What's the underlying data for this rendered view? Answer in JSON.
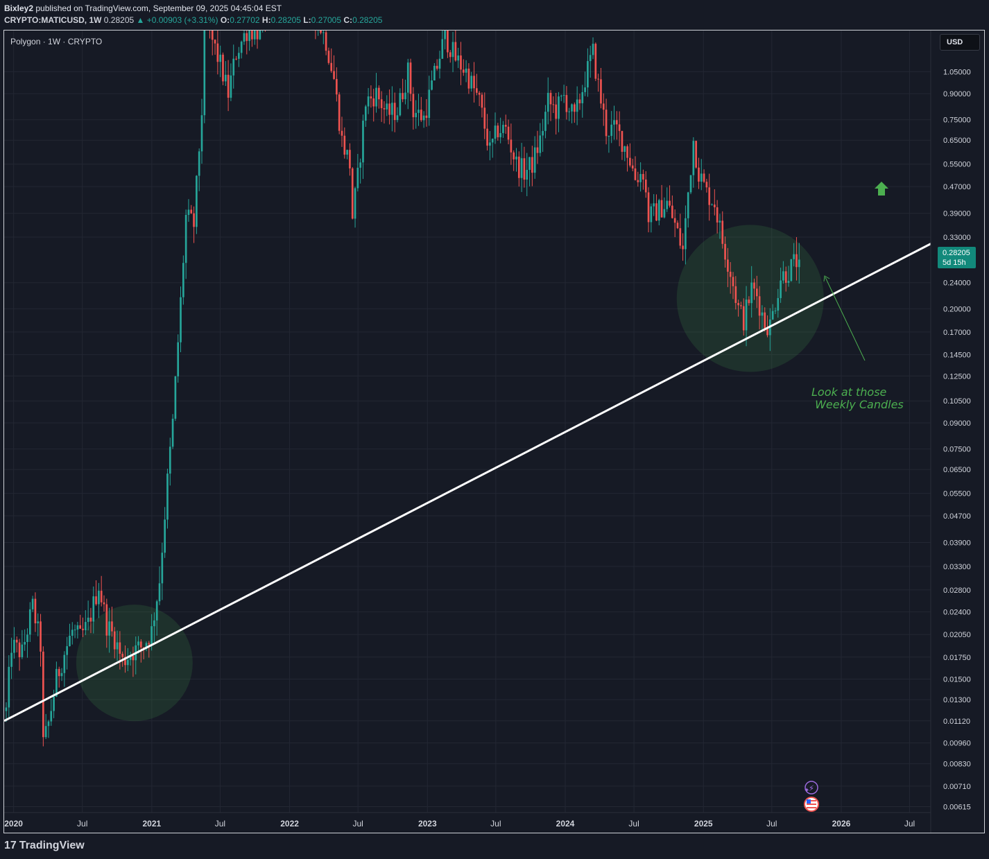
{
  "header": {
    "author": "Bixley2",
    "published_text": "published on TradingView.com, September 09, 2025 04:45:04 EST",
    "symbol": "CRYPTO:MATICUSD, 1W",
    "last": "0.28205",
    "change": "▲ +0.00903 (+3.31%)",
    "open_label": "O:",
    "open": "0.27702",
    "high_label": "H:",
    "high": "0.28205",
    "low_label": "L:",
    "low": "0.27005",
    "close_label": "C:",
    "close": "0.28205"
  },
  "legend": {
    "title": "Polygon · 1W · CRYPTO"
  },
  "currency_button": {
    "label": "USD"
  },
  "price_tag": {
    "price": "0.28205",
    "countdown": "5d 15h"
  },
  "annotation": {
    "text": "Look at those\n Weekly Candles"
  },
  "footer": {
    "brand": "TradingView",
    "logo_glyph": "17"
  },
  "colors": {
    "background": "#161a25",
    "up": "#26a69a",
    "down": "#ef5350",
    "trendline": "#ffffff",
    "highlight": "#4caf50"
  },
  "icons": [
    "arrow-up-icon",
    "flash-icon",
    "us-flag-icon",
    "tradingview-logo-icon"
  ],
  "chart_data": {
    "type": "candlestick",
    "title": "Polygon · 1W · CRYPTO",
    "scale": "log",
    "ylim": [
      0.0059,
      1.4
    ],
    "y_ticks": [
      "1.05000",
      "0.90000",
      "0.75000",
      "0.65000",
      "0.55000",
      "0.47000",
      "0.39000",
      "0.33000",
      "0.24000",
      "0.20000",
      "0.17000",
      "0.14500",
      "0.12500",
      "0.10500",
      "0.09000",
      "0.07500",
      "0.06500",
      "0.05500",
      "0.04700",
      "0.03900",
      "0.03300",
      "0.02800",
      "0.02400",
      "0.02050",
      "0.01750",
      "0.01500",
      "0.01300",
      "0.01120",
      "0.00960",
      "0.00830",
      "0.00710",
      "0.00615"
    ],
    "x_ticks": [
      "2020",
      "Jul",
      "2021",
      "Jul",
      "2022",
      "Jul",
      "2023",
      "Jul",
      "2024",
      "Jul",
      "2025",
      "Jul",
      "2026",
      "Jul"
    ],
    "x_tick_dates": [
      "2020-01-01",
      "2020-07-01",
      "2021-01-01",
      "2021-07-01",
      "2022-01-01",
      "2022-07-01",
      "2023-01-01",
      "2023-07-01",
      "2024-01-01",
      "2024-07-01",
      "2025-01-01",
      "2025-07-01",
      "2026-01-01",
      "2026-07-01"
    ],
    "xlim": [
      "2019-12-07",
      "2026-08-26"
    ],
    "price_path": [
      [
        "2019-12-09",
        0.012
      ],
      [
        "2019-12-23",
        0.019
      ],
      [
        "2020-01-20",
        0.018
      ],
      [
        "2020-02-17",
        0.025
      ],
      [
        "2020-03-09",
        0.019
      ],
      [
        "2020-03-16",
        0.0095
      ],
      [
        "2020-03-30",
        0.011
      ],
      [
        "2020-04-20",
        0.015
      ],
      [
        "2020-05-11",
        0.018
      ],
      [
        "2020-06-01",
        0.021
      ],
      [
        "2020-06-22",
        0.02
      ],
      [
        "2020-07-13",
        0.022
      ],
      [
        "2020-08-10",
        0.029
      ],
      [
        "2020-08-31",
        0.022
      ],
      [
        "2020-09-21",
        0.02
      ],
      [
        "2020-10-12",
        0.017
      ],
      [
        "2020-11-02",
        0.018
      ],
      [
        "2020-12-07",
        0.019
      ],
      [
        "2020-12-28",
        0.021
      ],
      [
        "2021-01-18",
        0.03
      ],
      [
        "2021-02-08",
        0.06
      ],
      [
        "2021-02-22",
        0.09
      ],
      [
        "2021-03-15",
        0.21
      ],
      [
        "2021-03-29",
        0.38
      ],
      [
        "2021-04-19",
        0.36
      ],
      [
        "2021-05-10",
        0.8
      ],
      [
        "2021-05-17",
        1.5
      ],
      [
        "2021-06-07",
        1.3
      ],
      [
        "2021-06-28",
        1.1
      ],
      [
        "2021-07-19",
        0.9
      ],
      [
        "2021-08-09",
        1.2
      ],
      [
        "2021-09-06",
        1.4
      ],
      [
        "2021-10-04",
        1.4
      ],
      [
        "2022-01-03",
        2.3
      ],
      [
        "2022-03-14",
        1.5
      ],
      [
        "2022-04-04",
        1.3
      ],
      [
        "2022-04-25",
        1.0
      ],
      [
        "2022-05-16",
        0.65
      ],
      [
        "2022-06-06",
        0.55
      ],
      [
        "2022-06-13",
        0.38
      ],
      [
        "2022-06-27",
        0.5
      ],
      [
        "2022-07-18",
        0.85
      ],
      [
        "2022-08-15",
        0.9
      ],
      [
        "2022-09-12",
        0.78
      ],
      [
        "2022-10-10",
        0.8
      ],
      [
        "2022-11-07",
        1.05
      ],
      [
        "2022-11-21",
        0.8
      ],
      [
        "2022-12-19",
        0.76
      ],
      [
        "2023-01-09",
        0.95
      ],
      [
        "2023-02-13",
        1.35
      ],
      [
        "2023-03-13",
        1.15
      ],
      [
        "2023-04-10",
        1.05
      ],
      [
        "2023-05-15",
        0.85
      ],
      [
        "2023-06-12",
        0.6
      ],
      [
        "2023-07-03",
        0.7
      ],
      [
        "2023-07-24",
        0.7
      ],
      [
        "2023-08-21",
        0.55
      ],
      [
        "2023-09-11",
        0.52
      ],
      [
        "2023-10-02",
        0.55
      ],
      [
        "2023-10-23",
        0.65
      ],
      [
        "2023-11-13",
        0.85
      ],
      [
        "2023-12-04",
        0.8
      ],
      [
        "2023-12-25",
        0.88
      ],
      [
        "2024-01-22",
        0.75
      ],
      [
        "2024-02-19",
        1.0
      ],
      [
        "2024-03-11",
        1.2
      ],
      [
        "2024-03-25",
        0.95
      ],
      [
        "2024-04-15",
        0.7
      ],
      [
        "2024-05-13",
        0.7
      ],
      [
        "2024-06-10",
        0.6
      ],
      [
        "2024-07-01",
        0.5
      ],
      [
        "2024-07-22",
        0.52
      ],
      [
        "2024-08-05",
        0.38
      ],
      [
        "2024-09-02",
        0.4
      ],
      [
        "2024-09-23",
        0.42
      ],
      [
        "2024-10-14",
        0.36
      ],
      [
        "2024-11-04",
        0.3
      ],
      [
        "2024-11-18",
        0.45
      ],
      [
        "2024-12-02",
        0.65
      ],
      [
        "2024-12-16",
        0.52
      ],
      [
        "2025-01-06",
        0.45
      ],
      [
        "2025-01-27",
        0.42
      ],
      [
        "2025-02-17",
        0.32
      ],
      [
        "2025-03-10",
        0.26
      ],
      [
        "2025-03-31",
        0.2
      ],
      [
        "2025-04-14",
        0.185
      ],
      [
        "2025-05-05",
        0.23
      ],
      [
        "2025-05-19",
        0.22
      ],
      [
        "2025-06-09",
        0.18
      ],
      [
        "2025-06-23",
        0.178
      ],
      [
        "2025-07-07",
        0.21
      ],
      [
        "2025-07-21",
        0.25
      ],
      [
        "2025-08-11",
        0.26
      ],
      [
        "2025-08-25",
        0.275
      ],
      [
        "2025-09-08",
        0.28205
      ]
    ],
    "trendline": {
      "from": [
        "2019-12-07",
        0.0112
      ],
      "to": [
        "2026-08-26",
        0.315
      ]
    },
    "highlight_circles": [
      {
        "center": [
          "2020-11-16",
          0.0168
        ]
      },
      {
        "center": [
          "2025-05-05",
          0.215
        ]
      }
    ],
    "last_price": 0.28205,
    "currency": "USD",
    "grid": true
  }
}
